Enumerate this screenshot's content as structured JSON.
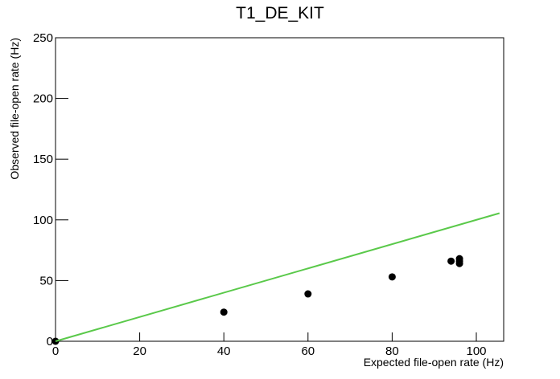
{
  "chart_data": {
    "type": "scatter",
    "title": "T1_DE_KIT",
    "x_label": "Expected file-open rate (Hz)",
    "y_label": "Observed file-open rate (Hz)",
    "xlim": [
      0,
      106.5
    ],
    "ylim": [
      0,
      250
    ],
    "xticks": [
      0,
      20,
      40,
      60,
      80,
      100
    ],
    "yticks": [
      0,
      50,
      100,
      150,
      200,
      250
    ],
    "series": [
      {
        "type": "scatter",
        "color": "#000000",
        "x": [
          0,
          40,
          60,
          80,
          94,
          96,
          96,
          96
        ],
        "values": [
          0,
          24,
          39,
          53,
          66,
          68,
          66,
          64
        ]
      },
      {
        "type": "line",
        "color": "#5ac94a",
        "x": [
          0,
          105.5
        ],
        "values": [
          0,
          105.5
        ]
      }
    ]
  }
}
